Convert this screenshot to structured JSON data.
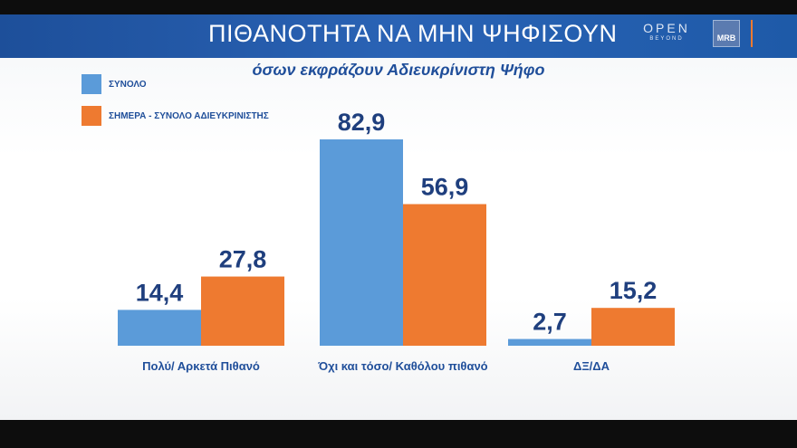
{
  "header": {
    "title": "ΠΙΘΑΝΟΤΗΤΑ ΝΑ ΜΗΝ ΨΗΦΙΣΟΥΝ",
    "logo_main": "OPEN",
    "logo_sub": "BEYOND",
    "badge": "MRB"
  },
  "colors": {
    "series_1": "#5b9bd9",
    "series_2": "#ee7a30",
    "header_bg": "#2a63b5",
    "text": "#1f4e9a"
  },
  "chart_data": {
    "type": "bar",
    "title": "όσων εκφράζουν Αδιευκρίνιστη Ψήφο",
    "categories": [
      "Πολύ/ Αρκετά Πιθανό",
      "Όχι και τόσο/ Καθόλου πιθανό",
      "ΔΞ/ΔΑ"
    ],
    "series": [
      {
        "name": "ΣΥΝΟΛΟ",
        "values": [
          14.4,
          82.9,
          2.7
        ],
        "labels": [
          "14,4",
          "82,9",
          "2,7"
        ]
      },
      {
        "name": "ΣΗΜΕΡΑ - ΣΥΝΟΛΟ ΑΔΙΕΥΚΡΙΝΙΣΤΗΣ",
        "values": [
          27.8,
          56.9,
          15.2
        ],
        "labels": [
          "27,8",
          "56,9",
          "15,2"
        ]
      }
    ],
    "legend_position": "top-left",
    "grid": false,
    "ylim": [
      0,
      100
    ]
  }
}
